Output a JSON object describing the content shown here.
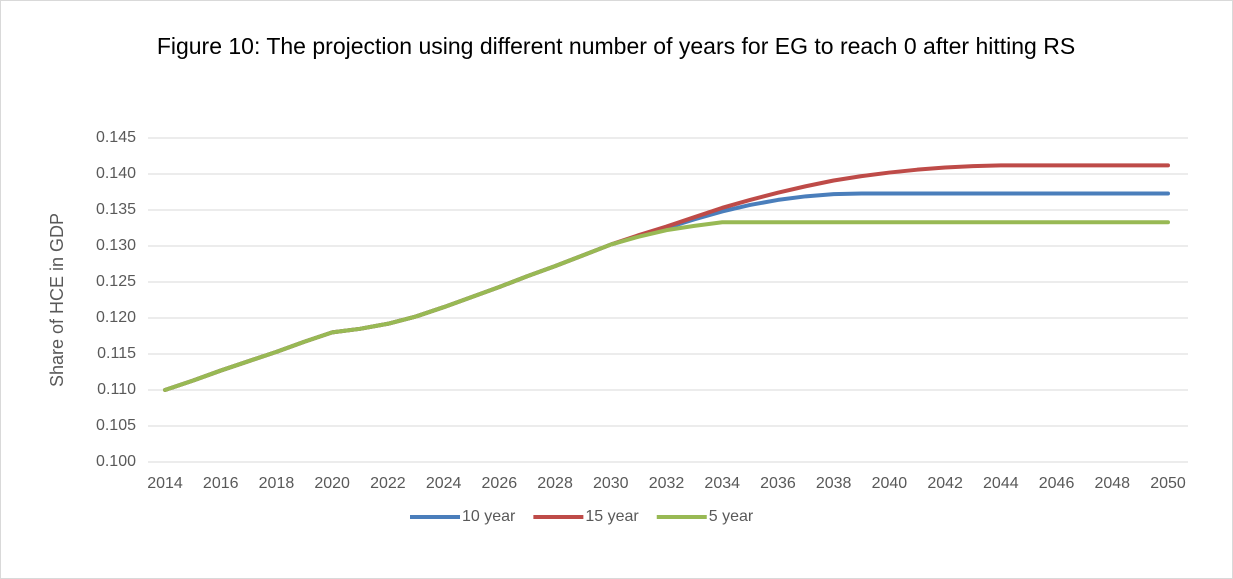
{
  "chart_data": {
    "type": "line",
    "title": "Figure 10: The projection using different number of years for EG to reach 0 after hitting RS",
    "y_label": "Share of HCE in GDP",
    "x": [
      2014,
      2015,
      2016,
      2017,
      2018,
      2019,
      2020,
      2021,
      2022,
      2023,
      2024,
      2025,
      2026,
      2027,
      2028,
      2029,
      2030,
      2031,
      2032,
      2033,
      2034,
      2035,
      2036,
      2037,
      2038,
      2039,
      2040,
      2041,
      2042,
      2043,
      2044,
      2045,
      2046,
      2047,
      2048,
      2049,
      2050
    ],
    "xlim": [
      2014,
      2050
    ],
    "xticks": [
      2014,
      2016,
      2018,
      2020,
      2022,
      2024,
      2026,
      2028,
      2030,
      2032,
      2034,
      2036,
      2038,
      2040,
      2042,
      2044,
      2046,
      2048,
      2050
    ],
    "ylim": [
      0.1,
      0.145
    ],
    "yticks": [
      {
        "value": 0.1,
        "label": "0.100"
      },
      0.105,
      {
        "value": 0.11,
        "label": "0.110"
      },
      0.115,
      {
        "value": 0.12,
        "label": "0.120"
      },
      0.125,
      {
        "value": 0.13,
        "label": "0.130"
      },
      0.135,
      {
        "value": 0.14,
        "label": "0.140"
      },
      0.145
    ],
    "grid": true,
    "legend": "bottom",
    "series": [
      {
        "name": "10 year",
        "color": "#4a7ebb",
        "values": [
          0.11,
          0.1113,
          0.1127,
          0.114,
          0.1153,
          0.1167,
          0.118,
          0.1185,
          0.1192,
          0.1202,
          0.1215,
          0.1229,
          0.1243,
          0.1258,
          0.1272,
          0.1287,
          0.1302,
          0.1314,
          0.1325,
          0.1337,
          0.1348,
          0.1357,
          0.1364,
          0.1369,
          0.1372,
          0.1373,
          0.1373,
          0.1373,
          0.1373,
          0.1373,
          0.1373,
          0.1373,
          0.1373,
          0.1373,
          0.1373,
          0.1373,
          0.1373
        ]
      },
      {
        "name": "15 year",
        "color": "#be4b48",
        "values": [
          0.11,
          0.1113,
          0.1127,
          0.114,
          0.1153,
          0.1167,
          0.118,
          0.1185,
          0.1192,
          0.1202,
          0.1215,
          0.1229,
          0.1243,
          0.1258,
          0.1272,
          0.1287,
          0.1302,
          0.1315,
          0.1327,
          0.134,
          0.1353,
          0.1364,
          0.1374,
          0.1383,
          0.1391,
          0.1397,
          0.1402,
          0.1406,
          0.1409,
          0.1411,
          0.1412,
          0.1412,
          0.1412,
          0.1412,
          0.1412,
          0.1412,
          0.1412
        ]
      },
      {
        "name": "5 year",
        "color": "#98b954",
        "values": [
          0.11,
          0.1113,
          0.1127,
          0.114,
          0.1153,
          0.1167,
          0.118,
          0.1185,
          0.1192,
          0.1202,
          0.1215,
          0.1229,
          0.1243,
          0.1258,
          0.1272,
          0.1287,
          0.1302,
          0.1313,
          0.1322,
          0.1328,
          0.1333,
          0.1333,
          0.1333,
          0.1333,
          0.1333,
          0.1333,
          0.1333,
          0.1333,
          0.1333,
          0.1333,
          0.1333,
          0.1333,
          0.1333,
          0.1333,
          0.1333,
          0.1333,
          0.1333
        ]
      }
    ]
  }
}
